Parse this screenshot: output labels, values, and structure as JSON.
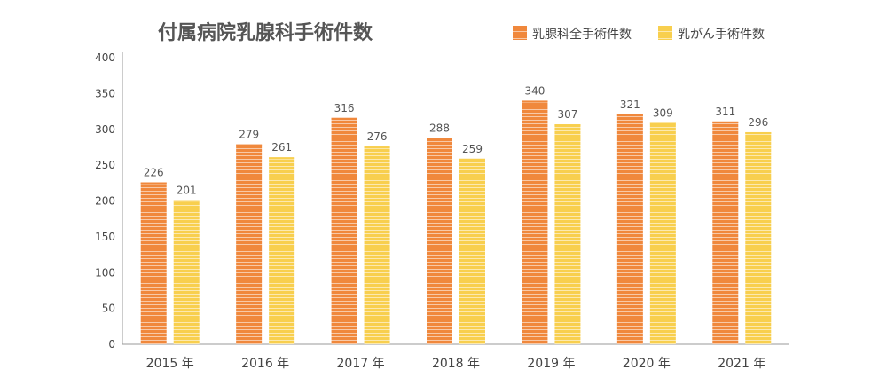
{
  "chart_data": {
    "type": "bar",
    "title": "付属病院乳腺科手術件数",
    "categories": [
      "2015 年",
      "2016 年",
      "2017 年",
      "2018 年",
      "2019 年",
      "2020 年",
      "2021 年"
    ],
    "series": [
      {
        "name": "乳腺科全手術件数",
        "values": [
          226,
          279,
          316,
          288,
          340,
          321,
          311
        ]
      },
      {
        "name": "乳がん手術件数",
        "values": [
          201,
          261,
          276,
          259,
          307,
          309,
          296
        ]
      }
    ],
    "ylim": [
      0,
      400
    ],
    "yticks": [
      0,
      50,
      100,
      150,
      200,
      250,
      300,
      350,
      400
    ],
    "legend_position": "top-right",
    "grid": false
  },
  "colors": {
    "series1": "#f0883c",
    "series2": "#f8cf4e",
    "axis": "#999999"
  }
}
